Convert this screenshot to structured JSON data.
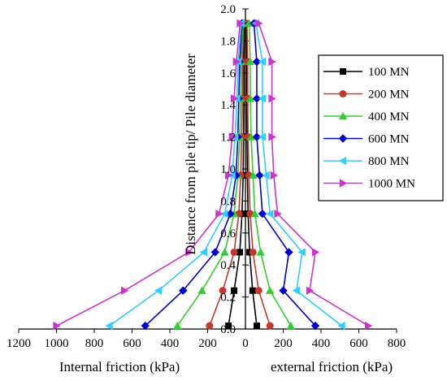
{
  "chart_data": {
    "type": "line",
    "title": "",
    "ylabel": "Distance from pile tip/ Pile diameter",
    "xlabel_left": "Internal friction (kPa)",
    "xlabel_right": "external friction (kPa)",
    "x_ticks_left": [
      "1200",
      "1000",
      "800",
      "600",
      "400",
      "200"
    ],
    "x_ticks_center": "0",
    "x_ticks_right": [
      "200",
      "400",
      "600",
      "800"
    ],
    "y_ticks": [
      "0.0",
      "0.2",
      "0.4",
      "0.6",
      "0.8",
      "1.0",
      "1.2",
      "1.4",
      "1.6",
      "1.8",
      "2.0"
    ],
    "xlim_internal": [
      0,
      1200
    ],
    "xlim_external": [
      0,
      800
    ],
    "ylim": [
      0,
      2.0
    ],
    "grid": false,
    "legend_position": "right",
    "y": [
      0.02,
      0.24,
      0.48,
      0.72,
      0.96,
      1.2,
      1.44,
      1.67,
      1.91
    ],
    "series": [
      {
        "name": "100 MN",
        "color": "#000000",
        "marker": "square",
        "internal": [
          90,
          60,
          30,
          18,
          12,
          10,
          8,
          8,
          6
        ],
        "external": [
          60,
          38,
          22,
          14,
          10,
          8,
          7,
          7,
          5
        ]
      },
      {
        "name": "200 MN",
        "color": "#c0392b",
        "marker": "circle",
        "internal": [
          190,
          120,
          60,
          35,
          25,
          20,
          16,
          15,
          10
        ],
        "external": [
          130,
          70,
          40,
          25,
          18,
          14,
          12,
          12,
          8
        ]
      },
      {
        "name": "400 MN",
        "color": "#33cc33",
        "marker": "triangle-up",
        "internal": [
          360,
          230,
          110,
          60,
          40,
          30,
          25,
          22,
          14
        ],
        "external": [
          240,
          130,
          80,
          50,
          40,
          30,
          26,
          25,
          20
        ]
      },
      {
        "name": "600 MN",
        "color": "#0000cc",
        "marker": "diamond",
        "internal": [
          530,
          330,
          160,
          80,
          50,
          40,
          35,
          30,
          18
        ],
        "external": [
          370,
          200,
          230,
          90,
          75,
          60,
          60,
          60,
          45
        ]
      },
      {
        "name": "800 MN",
        "color": "#33ccff",
        "marker": "triangle-left",
        "internal": [
          720,
          460,
          220,
          110,
          70,
          55,
          45,
          38,
          22
        ],
        "external": [
          510,
          270,
          300,
          130,
          110,
          90,
          90,
          90,
          55
        ]
      },
      {
        "name": "1000 MN",
        "color": "#cc33cc",
        "marker": "triangle-right",
        "internal": [
          1000,
          640,
          300,
          140,
          90,
          70,
          60,
          48,
          28
        ],
        "external": [
          650,
          340,
          370,
          170,
          150,
          140,
          140,
          140,
          70
        ]
      }
    ]
  }
}
